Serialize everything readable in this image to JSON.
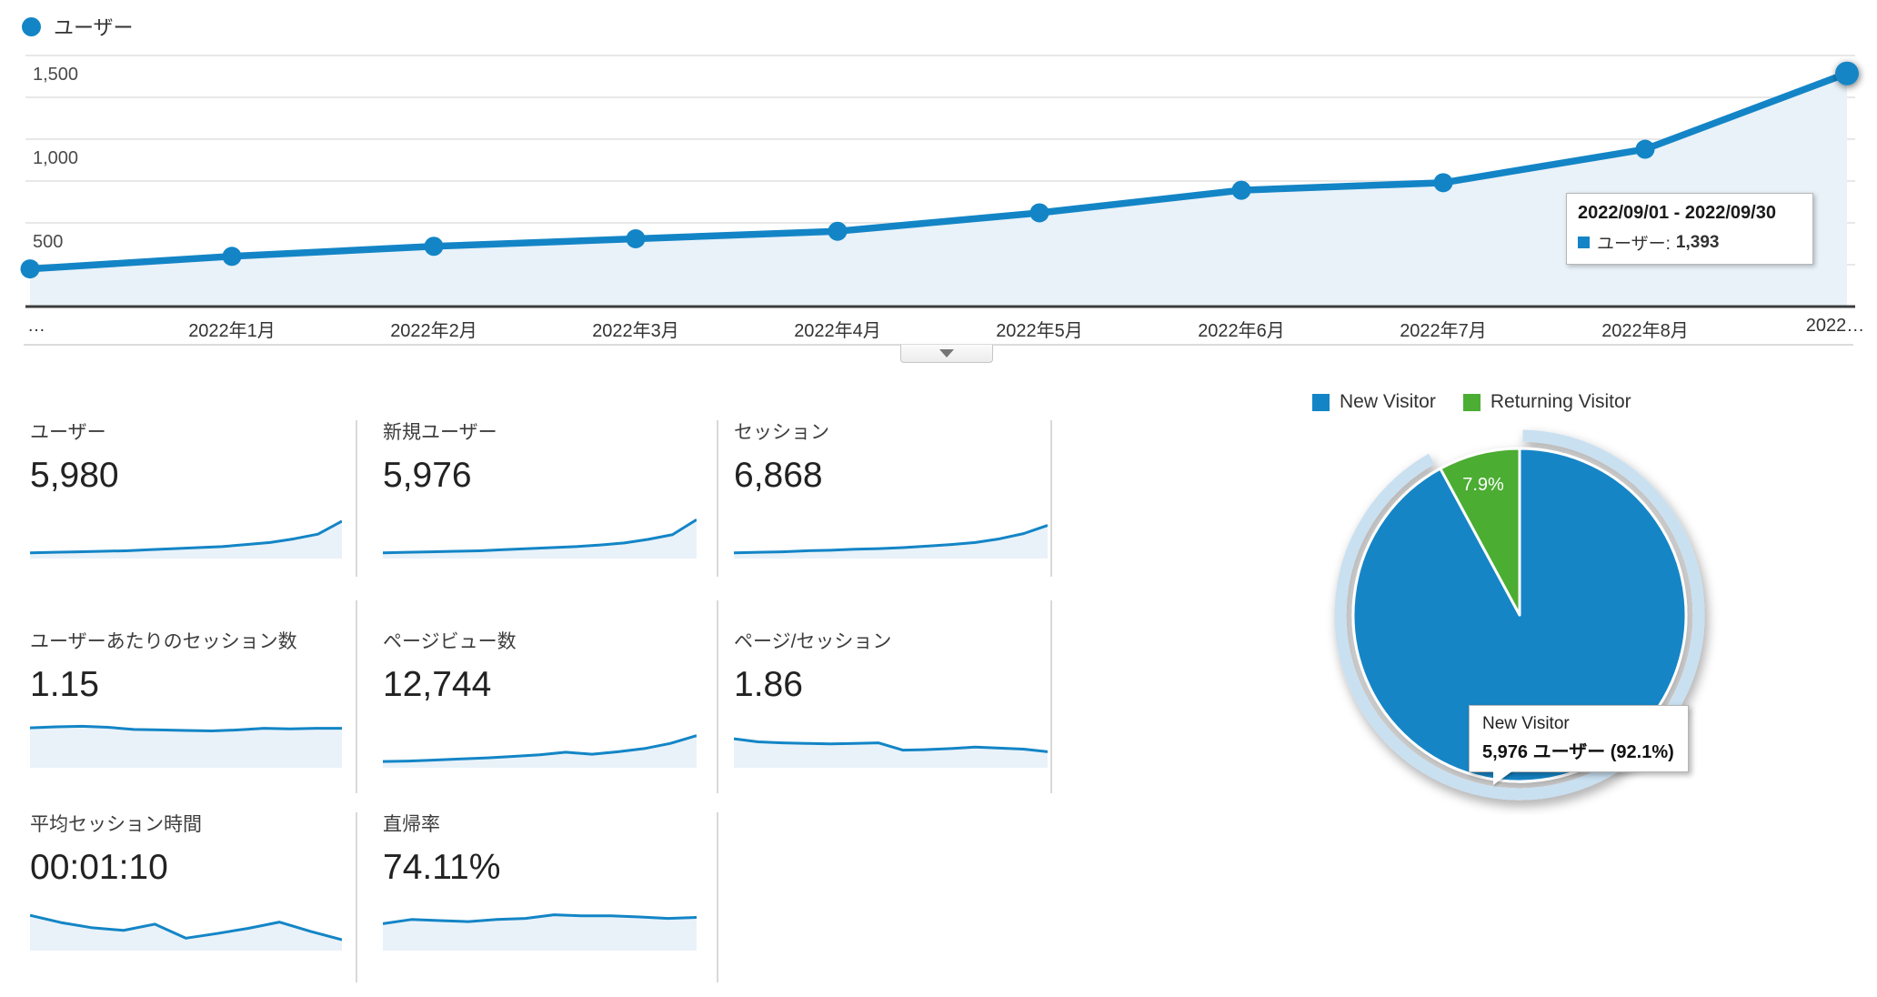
{
  "colors": {
    "blue": "#1385c6",
    "green": "#4bad33",
    "area_fill": "#e9f2f9",
    "ring": "#c9e0f1",
    "gridline": "#e8e8e8",
    "axis": "#3c3c3c"
  },
  "top_legend_label": "ユーザー",
  "chart_data": [
    {
      "id": "users-over-time",
      "type": "line",
      "series_name": "ユーザー",
      "x_labels": [
        "…",
        "2022年1月",
        "2022年2月",
        "2022年3月",
        "2022年4月",
        "2022年5月",
        "2022年6月",
        "2022年7月",
        "2022年8月",
        "2022…"
      ],
      "values": [
        225,
        300,
        360,
        405,
        450,
        560,
        695,
        740,
        940,
        1393
      ],
      "ylim": [
        0,
        1500
      ],
      "yticks": [
        {
          "value": 500,
          "label": "500"
        },
        {
          "value": 1000,
          "label": "1,000"
        },
        {
          "value": 1500,
          "label": "1,500"
        }
      ],
      "gridline_step": 250,
      "legend_position": "top-left",
      "tooltip": {
        "title": "2022/09/01 - 2022/09/30",
        "series": "ユーザー",
        "value": "1,393"
      }
    },
    {
      "id": "visitor-type",
      "type": "pie",
      "legend": [
        "New Visitor",
        "Returning Visitor"
      ],
      "slices": [
        {
          "label": "New Visitor",
          "users": "5,976",
          "pct": 92.1
        },
        {
          "label": "Returning Visitor",
          "pct": 7.9
        }
      ],
      "visible_slice_label": "7.9%",
      "tooltip": {
        "title": "New Visitor",
        "detail": "5,976 ユーザー (92.1%)"
      }
    }
  ],
  "metrics": [
    {
      "label": "ユーザー",
      "value": "5,980",
      "spark": [
        11,
        12,
        13,
        14,
        15,
        17,
        19,
        21,
        23,
        27,
        31,
        38,
        47,
        72
      ]
    },
    {
      "label": "新規ユーザー",
      "value": "5,976",
      "spark": [
        11,
        12,
        13,
        14,
        15,
        17,
        19,
        21,
        23,
        26,
        30,
        37,
        46,
        75
      ]
    },
    {
      "label": "セッション",
      "value": "6,868",
      "spark": [
        11,
        12,
        13,
        15,
        16,
        18,
        19,
        21,
        24,
        27,
        31,
        38,
        48,
        64
      ]
    },
    {
      "label": "ユーザーあたりのセッション数",
      "value": "1.15",
      "spark": [
        77,
        79,
        80,
        78,
        74,
        73,
        72,
        71,
        73,
        76,
        75,
        76,
        76
      ]
    },
    {
      "label": "ページビュー数",
      "value": "12,744",
      "spark": [
        12,
        13,
        15,
        17,
        19,
        22,
        25,
        30,
        26,
        31,
        37,
        47,
        62
      ]
    },
    {
      "label": "ページ/セッション",
      "value": "1.86",
      "spark": [
        56,
        50,
        48,
        47,
        46,
        47,
        48,
        34,
        35,
        37,
        40,
        38,
        36,
        31
      ]
    },
    {
      "label": "平均セッション時間",
      "value": "00:01:10",
      "spark": [
        68,
        54,
        44,
        39,
        51,
        24,
        33,
        43,
        55,
        37,
        21
      ]
    },
    {
      "label": "直帰率",
      "value": "74.11%",
      "spark": [
        52,
        60,
        58,
        56,
        60,
        62,
        69,
        67,
        67,
        65,
        62,
        64
      ]
    }
  ],
  "expander_icon": "triangle-down"
}
